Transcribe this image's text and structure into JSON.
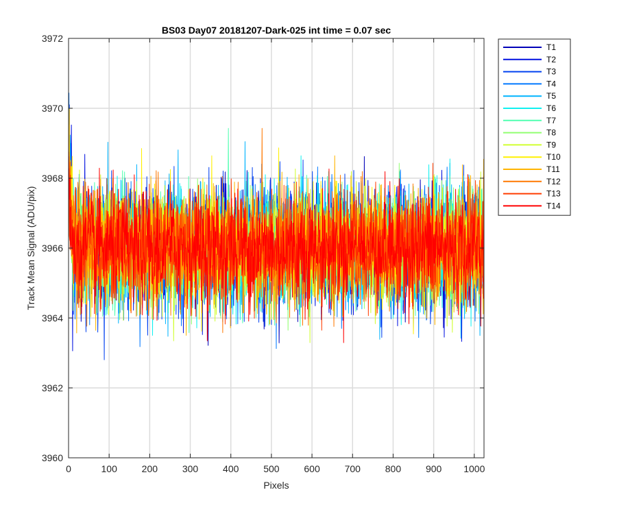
{
  "chart_data": {
    "type": "line",
    "title": "BS03 Day07 20181207-Dark-025 int time = 0.07 sec",
    "xlabel": "Pixels",
    "ylabel": "Track Mean Signal (ADU/pix)",
    "xlim": [
      0,
      1024
    ],
    "ylim": [
      3960,
      3972
    ],
    "xticks": [
      0,
      100,
      200,
      300,
      400,
      500,
      600,
      700,
      800,
      900,
      1000
    ],
    "yticks": [
      3960,
      3962,
      3964,
      3966,
      3968,
      3970,
      3972
    ],
    "x_tick_labels": [
      "0",
      "100",
      "200",
      "300",
      "400",
      "500",
      "600",
      "700",
      "800",
      "900",
      "1000"
    ],
    "y_tick_labels": [
      "3960",
      "3962",
      "3964",
      "3966",
      "3968",
      "3970",
      "3972"
    ],
    "grid": true,
    "legend_position": "outside-top-right",
    "series_length": 1024,
    "series": [
      {
        "name": "T1",
        "color": "#0000b8",
        "mean": 3966.0,
        "noise": 0.8
      },
      {
        "name": "T2",
        "color": "#0010e0",
        "mean": 3966.0,
        "noise": 0.85
      },
      {
        "name": "T3",
        "color": "#0040f0",
        "mean": 3966.0,
        "noise": 0.85
      },
      {
        "name": "T4",
        "color": "#0078ff",
        "mean": 3966.0,
        "noise": 0.85
      },
      {
        "name": "T5",
        "color": "#00b4ff",
        "mean": 3966.0,
        "noise": 0.85
      },
      {
        "name": "T6",
        "color": "#10f0f0",
        "mean": 3966.0,
        "noise": 0.8
      },
      {
        "name": "T7",
        "color": "#50ffb0",
        "mean": 3966.0,
        "noise": 0.8
      },
      {
        "name": "T8",
        "color": "#90ff70",
        "mean": 3966.0,
        "noise": 0.8
      },
      {
        "name": "T9",
        "color": "#d0ff30",
        "mean": 3966.0,
        "noise": 0.8
      },
      {
        "name": "T10",
        "color": "#fff000",
        "mean": 3966.0,
        "noise": 0.8
      },
      {
        "name": "T11",
        "color": "#ffb400",
        "mean": 3966.0,
        "noise": 0.8
      },
      {
        "name": "T12",
        "color": "#ff7800",
        "mean": 3966.0,
        "noise": 0.8
      },
      {
        "name": "T13",
        "color": "#ff3c00",
        "mean": 3966.0,
        "noise": 0.8
      },
      {
        "name": "T14",
        "color": "#ff0000",
        "mean": 3966.0,
        "noise": 0.8
      }
    ]
  }
}
